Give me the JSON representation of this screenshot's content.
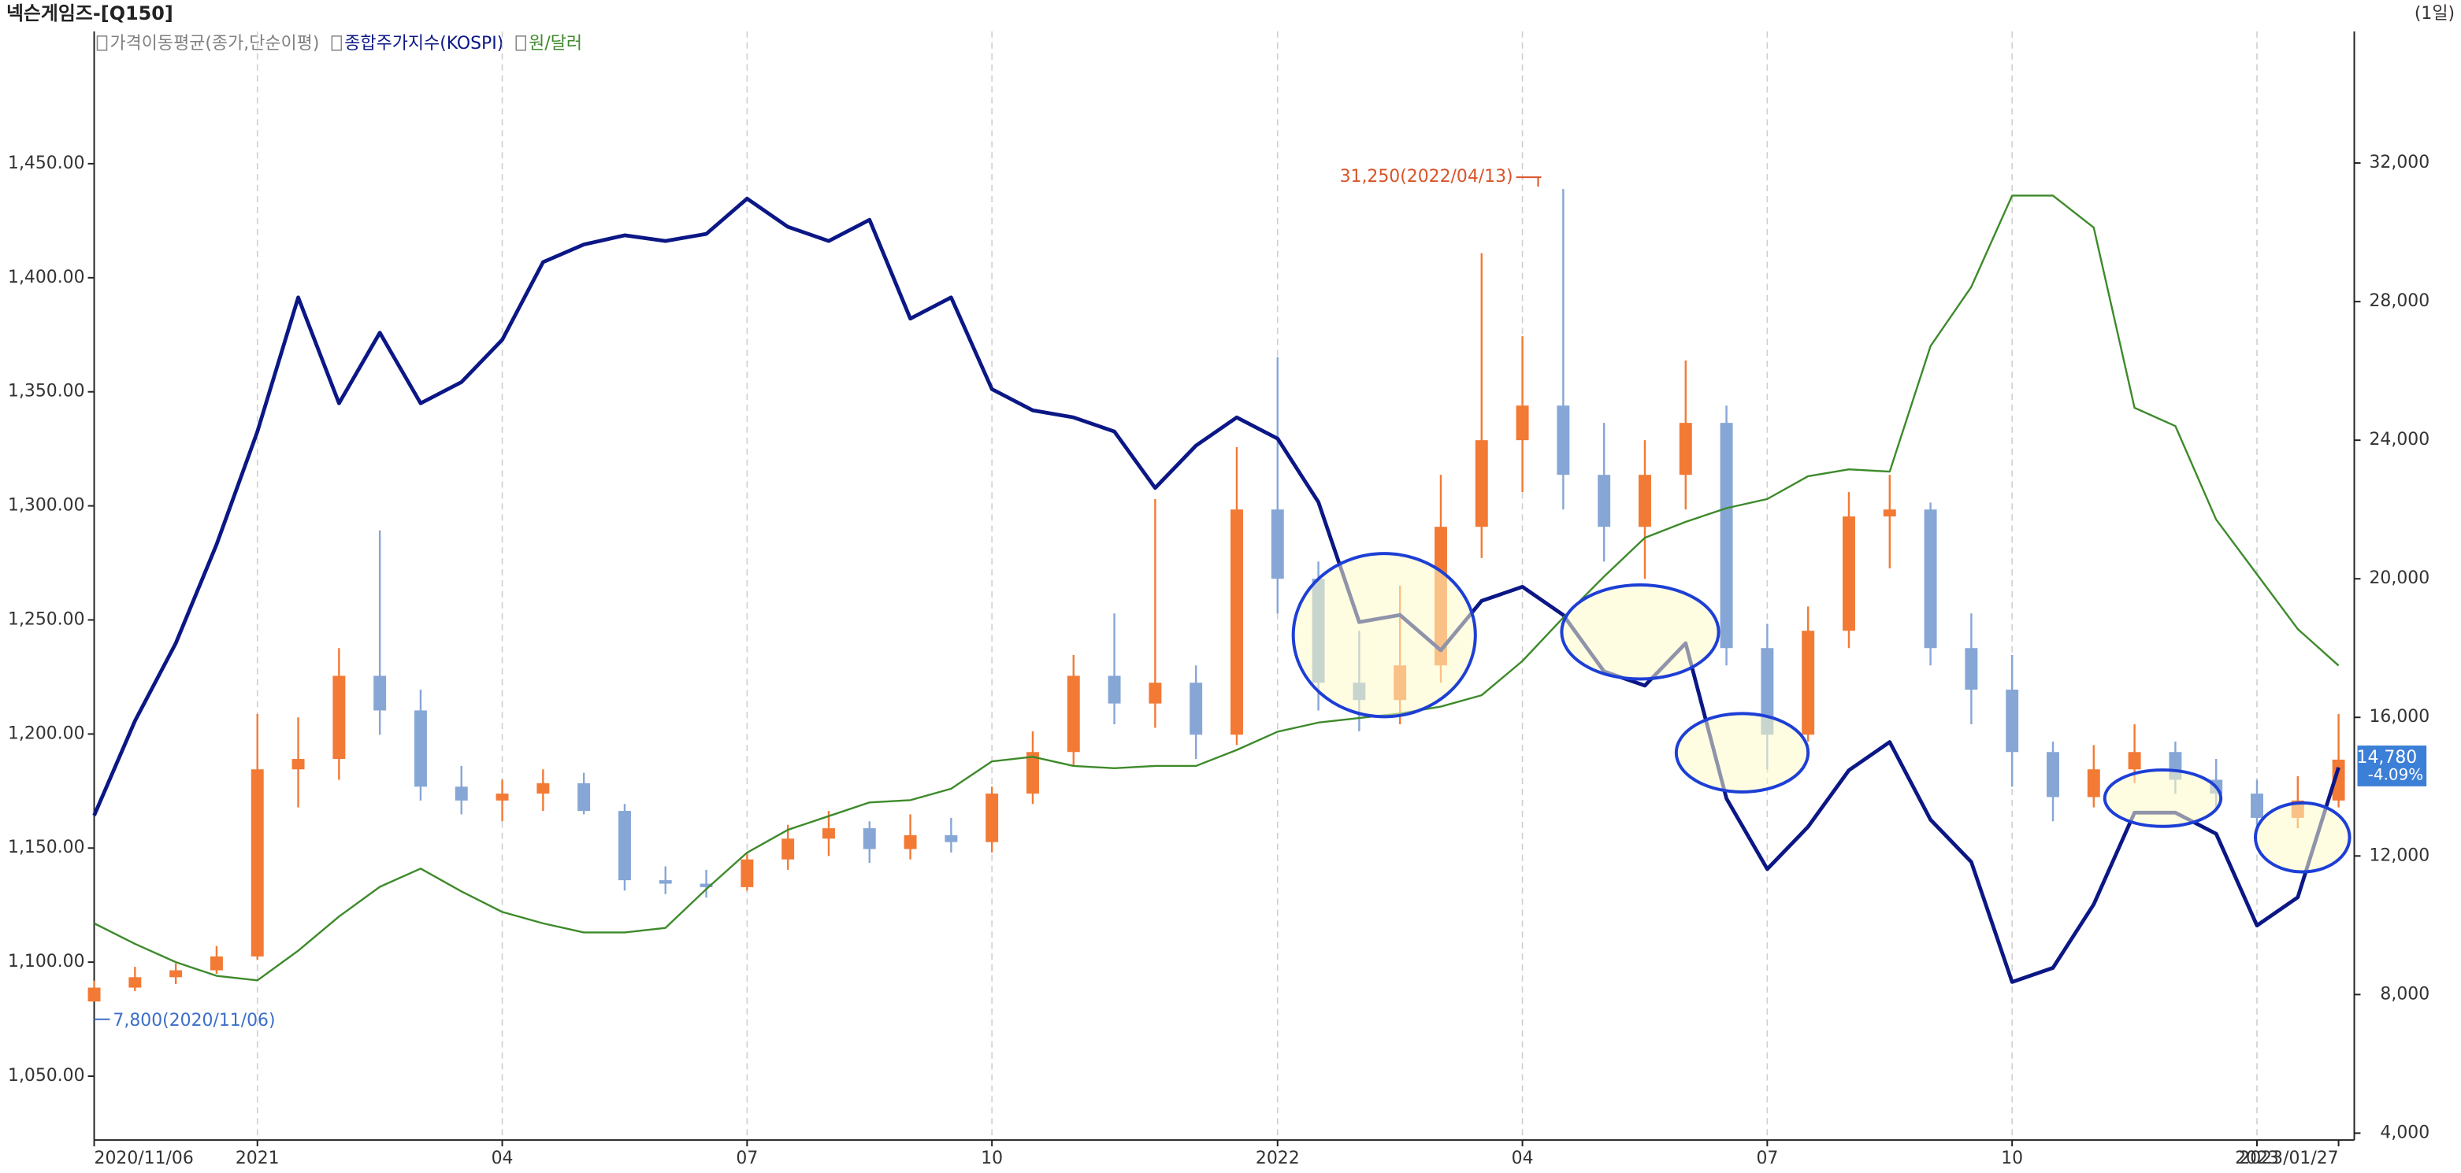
{
  "chart_data": {
    "type": "candlestick",
    "title": "넥슨게임즈-[Q150]",
    "period": "(1일)",
    "indicator": "가격이동평균(종가,단순이평)",
    "indicator_color": "#808080",
    "categories": [
      "2020/11/06",
      null,
      null,
      null,
      "2021",
      null,
      null,
      null,
      null,
      null,
      "04",
      null,
      null,
      null,
      null,
      null,
      "07",
      null,
      null,
      null,
      null,
      null,
      "10",
      null,
      null,
      null,
      null,
      null,
      null,
      "2022",
      null,
      null,
      null,
      null,
      null,
      "04",
      null,
      null,
      null,
      null,
      null,
      "07",
      null,
      null,
      null,
      null,
      null,
      "10",
      null,
      null,
      null,
      null,
      null,
      "2023",
      null,
      "2023/01/27"
    ],
    "ohlc": {
      "up_color": "#f27a35",
      "down_color": "#86a6d6",
      "axis": "y2",
      "open": [
        7800,
        8200,
        8500,
        8700,
        9100,
        14500,
        14800,
        17200,
        16200,
        14000,
        13600,
        13800,
        14100,
        13300,
        11300,
        11200,
        11100,
        11900,
        12500,
        12800,
        12200,
        12600,
        12400,
        13800,
        15000,
        17200,
        16400,
        17000,
        15500,
        22000,
        20000,
        17000,
        16500,
        17500,
        21500,
        24000,
        25000,
        23000,
        21500,
        23000,
        24500,
        18000,
        15500,
        18500,
        21800,
        22000,
        18000,
        16800,
        15000,
        13700,
        14500,
        15000,
        14200,
        13800,
        13100,
        13600
      ],
      "high": [
        8400,
        8800,
        8900,
        9400,
        16100,
        16000,
        18000,
        21400,
        16800,
        14600,
        14200,
        14500,
        14400,
        13500,
        11700,
        11600,
        12100,
        12900,
        13300,
        13000,
        13200,
        13100,
        14000,
        15600,
        17800,
        19000,
        22300,
        17500,
        23800,
        26400,
        20500,
        18500,
        19800,
        23000,
        29400,
        27000,
        31250,
        24500,
        24000,
        26300,
        25000,
        18700,
        19200,
        22500,
        23000,
        22200,
        19000,
        17800,
        15300,
        15200,
        15800,
        15300,
        14800,
        14200,
        14300,
        16100
      ],
      "low": [
        7800,
        8100,
        8300,
        8600,
        9000,
        13400,
        14200,
        15500,
        13600,
        13200,
        13000,
        13300,
        13200,
        11000,
        10900,
        10800,
        11000,
        11600,
        12000,
        11800,
        11900,
        12100,
        12100,
        13500,
        14600,
        15800,
        15700,
        14800,
        15200,
        19000,
        16200,
        15600,
        15800,
        17000,
        20600,
        22500,
        22000,
        20500,
        20000,
        22000,
        17500,
        14500,
        15300,
        18000,
        20300,
        17500,
        15800,
        14000,
        13000,
        13400,
        14100,
        13800,
        13300,
        12700,
        12800,
        13400
      ],
      "close": [
        8200,
        8500,
        8700,
        9100,
        14500,
        14800,
        17200,
        16200,
        14000,
        13600,
        13800,
        14100,
        13300,
        11300,
        11200,
        11100,
        11900,
        12500,
        12800,
        12200,
        12600,
        12400,
        13800,
        15000,
        17200,
        16400,
        17000,
        15500,
        22000,
        20000,
        17000,
        16500,
        17500,
        21500,
        24000,
        25000,
        23000,
        21500,
        23000,
        24500,
        18000,
        15500,
        18500,
        21800,
        22000,
        18000,
        16800,
        15000,
        13700,
        14500,
        15000,
        14200,
        13800,
        13100,
        13600,
        14780
      ]
    },
    "series": [
      {
        "name": "종합주가지수(KOSPI)",
        "color": "#0b1785",
        "axis": "y3",
        "values": [
          2416,
          2550,
          2660,
          2800,
          2960,
          3150,
          3000,
          3100,
          3000,
          3030,
          3090,
          3200,
          3225,
          3238,
          3230,
          3240,
          3290,
          3250,
          3230,
          3260,
          3120,
          3150,
          3020,
          2990,
          2980,
          2960,
          2880,
          2940,
          2980,
          2950,
          2860,
          2690,
          2700,
          2650,
          2720,
          2740,
          2700,
          2620,
          2600,
          2660,
          2440,
          2340,
          2400,
          2480,
          2520,
          2410,
          2350,
          2180,
          2200,
          2290,
          2420,
          2420,
          2390,
          2260,
          2300,
          2484
        ]
      },
      {
        "name": "원/달러",
        "color": "#3d8a2a",
        "axis": "y",
        "values": [
          1117,
          1108,
          1100,
          1094,
          1092,
          1105,
          1120,
          1133,
          1141,
          1131,
          1122,
          1117,
          1113,
          1113,
          1115,
          1132,
          1148,
          1158,
          1164,
          1170,
          1171,
          1176,
          1188,
          1190,
          1186,
          1185,
          1186,
          1186,
          1193,
          1201,
          1205,
          1207,
          1209,
          1212,
          1217,
          1232,
          1251,
          1269,
          1286,
          1293,
          1299,
          1303,
          1313,
          1316,
          1315,
          1370,
          1396,
          1436,
          1436,
          1422,
          1343,
          1335,
          1294,
          1270,
          1246,
          1230
        ]
      }
    ],
    "ylim": [
      1022,
      1508
    ],
    "yticks": [
      {
        "value": 1050,
        "label": "1,050.00"
      },
      {
        "value": 1100,
        "label": "1,100.00"
      },
      {
        "value": 1150,
        "label": "1,150.00"
      },
      {
        "value": 1200,
        "label": "1,200.00"
      },
      {
        "value": 1250,
        "label": "1,250.00"
      },
      {
        "value": 1300,
        "label": "1,300.00"
      },
      {
        "value": 1350,
        "label": "1,350.00"
      },
      {
        "value": 1400,
        "label": "1,400.00"
      },
      {
        "value": 1450,
        "label": "1,450.00"
      }
    ],
    "y2lim": [
      3800,
      35800
    ],
    "y2ticks": [
      {
        "value": 4000,
        "label": "4,000"
      },
      {
        "value": 8000,
        "label": "8,000"
      },
      {
        "value": 12000,
        "label": "12,000"
      },
      {
        "value": 16000,
        "label": "16,000"
      },
      {
        "value": 20000,
        "label": "20,000"
      },
      {
        "value": 24000,
        "label": "24,000"
      },
      {
        "value": 28000,
        "label": "28,000"
      },
      {
        "value": 32000,
        "label": "32,000"
      }
    ],
    "y3lim": [
      1956,
      3527
    ],
    "annotations": [
      "31,250(2022/04/13)",
      "7,800(2020/11/06)",
      "14,780",
      "-4.09%"
    ]
  }
}
